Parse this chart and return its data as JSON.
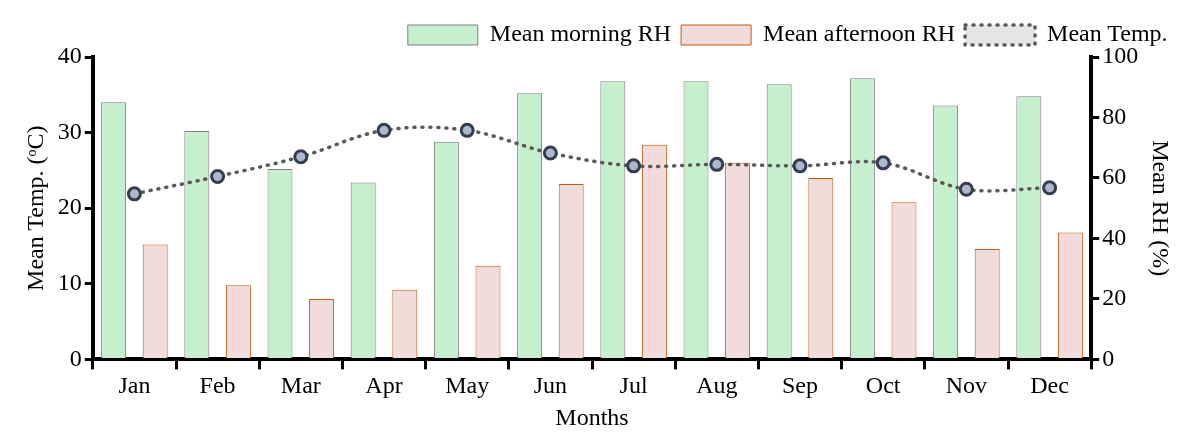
{
  "chart_data": {
    "type": "bar",
    "categories": [
      "Jan",
      "Feb",
      "Mar",
      "Apr",
      "May",
      "Jun",
      "Jul",
      "Aug",
      "Sep",
      "Oct",
      "Nov",
      "Dec"
    ],
    "series": [
      {
        "name": "Mean morning RH",
        "color": "#c6efce",
        "axis": "y2",
        "values": [
          85,
          75.5,
          63,
          58.5,
          72,
          88,
          92,
          92,
          91,
          93,
          84,
          87
        ]
      },
      {
        "name": "Mean afternoon RH",
        "color": "#f2dcdb",
        "axis": "y2",
        "values": [
          38,
          24.5,
          20,
          23,
          31,
          58,
          71,
          65,
          60,
          52,
          36.5,
          42
        ]
      },
      {
        "name": "Mean Temp.",
        "type": "line",
        "color": "#595959",
        "marker": "circle",
        "line_style": "dotted",
        "values": [
          21.9,
          24.2,
          26.8,
          30.3,
          30.3,
          27.3,
          25.6,
          25.8,
          25.6,
          26,
          22.5,
          22.7
        ]
      }
    ],
    "xlabel": "Months",
    "ylabel": "Mean Temp. (ᵒC)",
    "y2label": "Mean RH (%)",
    "ylim": [
      0,
      40
    ],
    "yticks": [
      0,
      10,
      20,
      30,
      40
    ],
    "y2lim": [
      0,
      100
    ],
    "y2ticks": [
      0,
      20,
      40,
      60,
      80,
      100
    ],
    "grid": false,
    "legend": "top"
  }
}
